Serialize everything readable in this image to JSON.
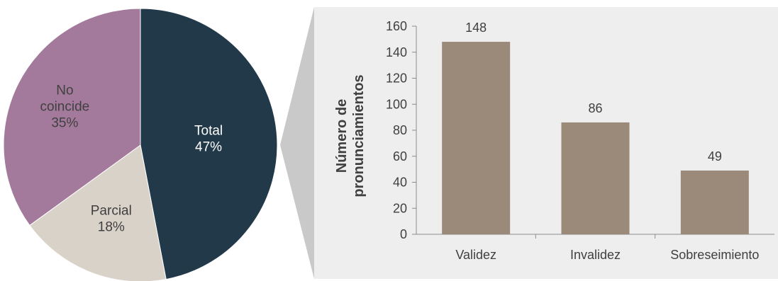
{
  "chart_data": [
    {
      "type": "pie",
      "slices": [
        {
          "label_lines": [
            "Total",
            "47%"
          ],
          "value": 47,
          "color": "#22394a"
        },
        {
          "label_lines": [
            "Parcial",
            "18%"
          ],
          "value": 18,
          "color": "#d9d2c8"
        },
        {
          "label_lines": [
            "No",
            "coincide",
            "35%"
          ],
          "value": 35,
          "color": "#a47a9c"
        }
      ]
    },
    {
      "type": "bar",
      "categories": [
        "Validez",
        "Invalidez",
        "Sobreseimiento"
      ],
      "values": [
        148,
        86,
        49
      ],
      "ylabel_lines": [
        "Número de",
        "pronunciamientos"
      ],
      "ylim": [
        0,
        160
      ],
      "yticks": [
        0,
        20,
        40,
        60,
        80,
        100,
        120,
        140,
        160
      ],
      "bar_color": "#9b8a7a",
      "background": "#eeeeee",
      "grid": false
    }
  ]
}
